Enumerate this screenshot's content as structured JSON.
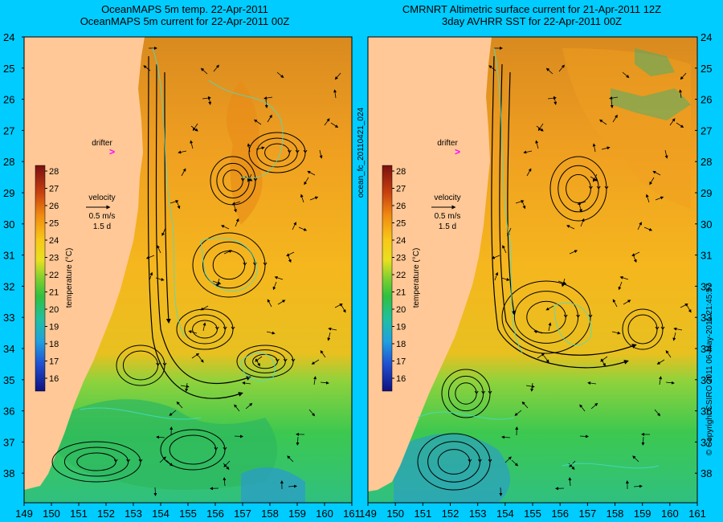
{
  "left_panel": {
    "title_line1": "OceanMAPS 5m temp. 22-Apr-2011",
    "title_line2": "OceanMAPS 5m current for 22-Apr-2011 00Z"
  },
  "right_panel": {
    "title_line1": "CMRNRT Altimetric surface current for 21-Apr-2011 12Z",
    "title_line2": "3day AVHRR SST for 22-Apr-2011 00Z"
  },
  "lat_ticks": [
    "24",
    "25",
    "26",
    "27",
    "28",
    "29",
    "30",
    "31",
    "32",
    "33",
    "34",
    "35",
    "36",
    "37",
    "38"
  ],
  "lon_ticks": [
    "149",
    "150",
    "151",
    "152",
    "153",
    "154",
    "155",
    "156",
    "157",
    "158",
    "159",
    "160",
    "161"
  ],
  "drifter_label": "drifter",
  "velocity_label": "velocity",
  "velocity_scale": "0.5 m/s",
  "velocity_duration": "1.5 d",
  "colorbar": {
    "ticks": [
      "28",
      "27",
      "26",
      "25",
      "24",
      "23",
      "22",
      "21",
      "20",
      "19",
      "18",
      "17",
      "16"
    ],
    "label": "temperature (°C)"
  },
  "file_id": "ocean_fc_20110421_024",
  "copyright": "© Copyright CSIRO 2011   06-May-2011 21:45:57",
  "colors": {
    "background": "#00ccff",
    "land": "#ffc896",
    "drifter_marker": "#ff00ff",
    "contour": "#40e0d0"
  }
}
